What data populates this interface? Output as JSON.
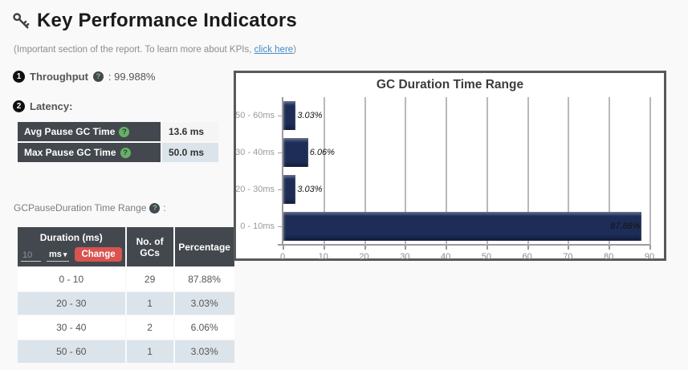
{
  "header": {
    "title": "Key Performance Indicators",
    "subtitle_prefix": "(Important section of the report. To learn more about KPIs, ",
    "subtitle_link": "click here",
    "subtitle_suffix": ")"
  },
  "icons": {
    "key": "key-icon",
    "help_glyph": "?",
    "caret_glyph": "▾"
  },
  "throughput": {
    "badge": "1",
    "label": "Throughput",
    "separator": ":",
    "value": "99.988%"
  },
  "latency": {
    "badge": "2",
    "label": "Latency:"
  },
  "pause_table": {
    "rows": [
      {
        "label": "Avg Pause GC Time",
        "value": "13.6 ms"
      },
      {
        "label": "Max Pause GC Time",
        "value": "50.0 ms"
      }
    ]
  },
  "range_section": {
    "label": "GCPauseDuration Time Range",
    "colon": ":"
  },
  "duration_table": {
    "columns": [
      "Duration (ms)",
      "No. of GCs",
      "Percentage"
    ],
    "input_placeholder": "10",
    "unit_select": "ms",
    "change_button": "Change",
    "rows": [
      {
        "duration": "0 - 10",
        "count": "29",
        "percentage": "87.88%"
      },
      {
        "duration": "20 - 30",
        "count": "1",
        "percentage": "3.03%"
      },
      {
        "duration": "30 - 40",
        "count": "2",
        "percentage": "6.06%"
      },
      {
        "duration": "50 - 60",
        "count": "1",
        "percentage": "3.03%"
      }
    ]
  },
  "chart_data": {
    "type": "bar",
    "orientation": "horizontal",
    "title": "GC Duration Time Range",
    "categories": [
      "50 - 60ms",
      "30 - 40ms",
      "20 - 30ms",
      "0 - 10ms"
    ],
    "values": [
      3.03,
      6.06,
      3.03,
      87.88
    ],
    "value_labels": [
      "3.03%",
      "6.06%",
      "3.03%",
      "87.88%"
    ],
    "xlim": [
      0,
      90
    ],
    "x_ticks": [
      0,
      10,
      20,
      30,
      40,
      50,
      60,
      70,
      80,
      90
    ],
    "bar_color": "#1d2d58",
    "grid": true,
    "legend": "none"
  },
  "colors": {
    "header_cell": "#43484e",
    "alt_row": "#dbe4ea",
    "danger_button": "#d9534f",
    "bar_navy": "#1d2d58",
    "link_blue": "#428bca",
    "help_green": "#67b168"
  }
}
